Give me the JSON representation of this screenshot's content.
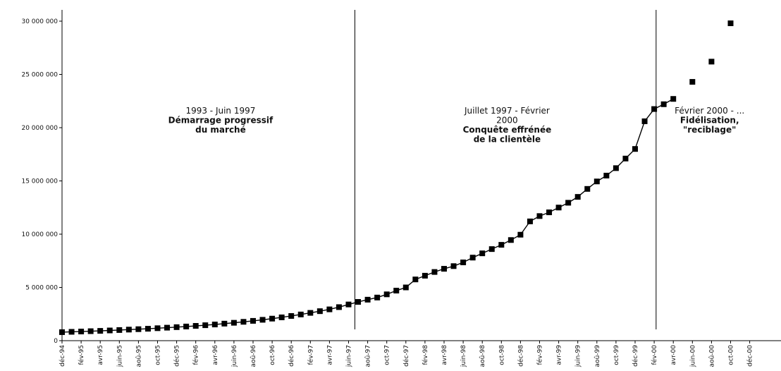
{
  "chart_data": {
    "type": "line",
    "title": "",
    "xlabel": "",
    "ylabel": "",
    "ylim": [
      0,
      30000000
    ],
    "y_ticks": [
      {
        "value": 0,
        "label": "0"
      },
      {
        "value": 5000000,
        "label": "5 000 000"
      },
      {
        "value": 10000000,
        "label": "10 000 000"
      },
      {
        "value": 15000000,
        "label": "15 000 000"
      },
      {
        "value": 20000000,
        "label": "20 000 000"
      },
      {
        "value": 25000000,
        "label": "25 000 000"
      },
      {
        "value": 30000000,
        "label": "30 000 000"
      }
    ],
    "x_categories": [
      "déc-94",
      "févr-95",
      "avr-95",
      "juin-95",
      "août-95",
      "oct-95",
      "déc-95",
      "févr-96",
      "avr-96",
      "juin-96",
      "août-96",
      "oct-96",
      "déc-96",
      "févr-97",
      "avr-97",
      "juin-97",
      "août-97",
      "oct-97",
      "déc-97",
      "févr-98",
      "avr-98",
      "juin-98",
      "août-98",
      "oct-98",
      "déc-98",
      "févr-99",
      "avr-99",
      "juin-99",
      "août-99",
      "oct-99",
      "déc-99",
      "févr-00",
      "avr-00",
      "juin-00",
      "août-00",
      "oct-00",
      "déc-00"
    ],
    "x_tick_labels": [
      "déc-94",
      "fév-95",
      "avr-95",
      "juin-95",
      "aoû-95",
      "oct-95",
      "déc-95",
      "fév-96",
      "avr-96",
      "juin-96",
      "aoû-96",
      "oct-96",
      "déc-96",
      "fév-97",
      "avr-97",
      "juin-97",
      "aoû-97",
      "oct-97",
      "déc-97",
      "fév-98",
      "avr-98",
      "juin-98",
      "aoû-98",
      "oct-98",
      "déc-98",
      "fév-99",
      "avr-99",
      "juin-99",
      "aoû-99",
      "oct-99",
      "déc-99",
      "fév-00",
      "avr-00",
      "juin-00",
      "aoû-00",
      "oct-00",
      "déc-00"
    ],
    "series": [
      {
        "values": [
          {
            "x": 0,
            "y": 800000
          },
          {
            "x": 0.5,
            "y": 830000
          },
          {
            "x": 1,
            "y": 860000
          },
          {
            "x": 1.5,
            "y": 890000
          },
          {
            "x": 2,
            "y": 920000
          },
          {
            "x": 2.5,
            "y": 960000
          },
          {
            "x": 3,
            "y": 1000000
          },
          {
            "x": 3.5,
            "y": 1040000
          },
          {
            "x": 4,
            "y": 1080000
          },
          {
            "x": 4.5,
            "y": 1120000
          },
          {
            "x": 5,
            "y": 1170000
          },
          {
            "x": 5.5,
            "y": 1220000
          },
          {
            "x": 6,
            "y": 1270000
          },
          {
            "x": 6.5,
            "y": 1330000
          },
          {
            "x": 7,
            "y": 1390000
          },
          {
            "x": 7.5,
            "y": 1450000
          },
          {
            "x": 8,
            "y": 1520000
          },
          {
            "x": 8.5,
            "y": 1600000
          },
          {
            "x": 9,
            "y": 1680000
          },
          {
            "x": 9.5,
            "y": 1770000
          },
          {
            "x": 10,
            "y": 1860000
          },
          {
            "x": 10.5,
            "y": 1960000
          },
          {
            "x": 11,
            "y": 2070000
          },
          {
            "x": 11.5,
            "y": 2190000
          },
          {
            "x": 12,
            "y": 2320000
          },
          {
            "x": 12.5,
            "y": 2460000
          },
          {
            "x": 13,
            "y": 2610000
          },
          {
            "x": 13.5,
            "y": 2770000
          },
          {
            "x": 14,
            "y": 2940000
          },
          {
            "x": 14.5,
            "y": 3150000
          },
          {
            "x": 15,
            "y": 3400000
          },
          {
            "x": 15.5,
            "y": 3640000
          },
          {
            "x": 16,
            "y": 3850000
          },
          {
            "x": 16.5,
            "y": 4050000
          },
          {
            "x": 17,
            "y": 4350000
          },
          {
            "x": 17.5,
            "y": 4700000
          },
          {
            "x": 18,
            "y": 5000000
          },
          {
            "x": 18.5,
            "y": 5750000
          },
          {
            "x": 19,
            "y": 6100000
          },
          {
            "x": 19.5,
            "y": 6450000
          },
          {
            "x": 20,
            "y": 6750000
          },
          {
            "x": 20.5,
            "y": 7000000
          },
          {
            "x": 21,
            "y": 7350000
          },
          {
            "x": 21.5,
            "y": 7800000
          },
          {
            "x": 22,
            "y": 8200000
          },
          {
            "x": 22.5,
            "y": 8600000
          },
          {
            "x": 23,
            "y": 9000000
          },
          {
            "x": 23.5,
            "y": 9450000
          },
          {
            "x": 24,
            "y": 9950000
          },
          {
            "x": 24.5,
            "y": 11200000
          },
          {
            "x": 25,
            "y": 11700000
          },
          {
            "x": 25.5,
            "y": 12050000
          },
          {
            "x": 26,
            "y": 12500000
          },
          {
            "x": 26.5,
            "y": 12950000
          },
          {
            "x": 27,
            "y": 13500000
          },
          {
            "x": 27.5,
            "y": 14250000
          },
          {
            "x": 28,
            "y": 14950000
          },
          {
            "x": 28.5,
            "y": 15500000
          },
          {
            "x": 29,
            "y": 16200000
          },
          {
            "x": 29.5,
            "y": 17100000
          },
          {
            "x": 30,
            "y": 18000000
          },
          {
            "x": 30.5,
            "y": 20600000
          },
          {
            "x": 31,
            "y": 21750000
          },
          {
            "x": 31.5,
            "y": 22200000
          },
          {
            "x": 32,
            "y": 22700000
          }
        ]
      },
      {
        "markers_only": true,
        "values": [
          {
            "x": 33,
            "y": 24300000
          },
          {
            "x": 34,
            "y": 26200000
          },
          {
            "x": 35,
            "y": 29800000
          }
        ]
      }
    ],
    "vertical_lines": [
      {
        "x": 15.33
      },
      {
        "x": 31.1
      }
    ],
    "annotations": [
      {
        "x": 8.3,
        "y": 20400000,
        "lines": [
          {
            "text": "1993 - Juin 1997",
            "bold": false
          },
          {
            "text": "Démarrage progressif",
            "bold": true
          },
          {
            "text": "du marché",
            "bold": true
          }
        ]
      },
      {
        "x": 23.3,
        "y": 20400000,
        "lines": [
          {
            "text": "Juillet 1997 - Février",
            "bold": false
          },
          {
            "text": "2000",
            "bold": false
          },
          {
            "text": "Conquête effrénée",
            "bold": true
          },
          {
            "text": "de la clientèle",
            "bold": true
          }
        ]
      },
      {
        "x": 33.9,
        "y": 20400000,
        "lines": [
          {
            "text": "Février 2000 - ...",
            "bold": false
          },
          {
            "text": "Fidélisation,",
            "bold": true
          },
          {
            "text": "\"reciblage\"",
            "bold": true
          }
        ]
      }
    ],
    "grid": false,
    "legend": "none",
    "colors": {
      "line": "#000000",
      "marker": "#000000",
      "axis": "#000000",
      "text": "#111111"
    }
  }
}
